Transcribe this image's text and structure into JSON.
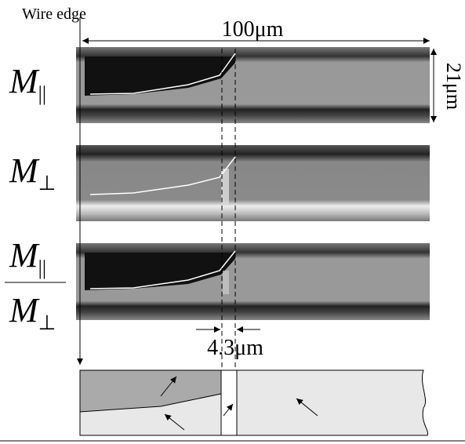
{
  "annotations": {
    "wire_edge": "Wire edge",
    "length": "100μm",
    "height": "21μm",
    "wall_width": "4.3μm"
  },
  "panels": [
    {
      "symbol": "M",
      "subscript": "||"
    },
    {
      "symbol": "M",
      "subscript": "⊥"
    },
    {
      "numerator": {
        "symbol": "M",
        "subscript": "||"
      },
      "denominator": {
        "symbol": "M",
        "subscript": "⊥"
      }
    }
  ]
}
